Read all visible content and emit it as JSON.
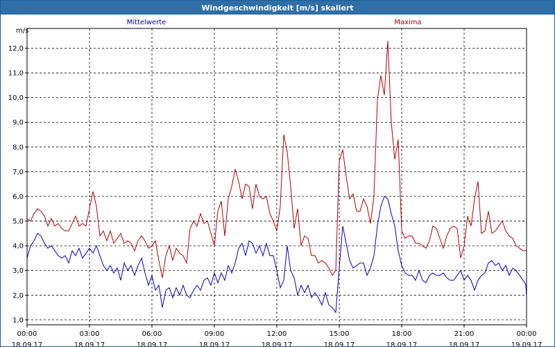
{
  "window": {
    "title": "Windgeschwindigkeit [m/s] skaliert"
  },
  "colors": {
    "mean": "#0000c0",
    "max": "#b00000",
    "grid": "#000000",
    "axis": "#000000",
    "titlebar": "#2f6ea6"
  },
  "chart_data": {
    "type": "line",
    "title": "Windgeschwindigkeit [m/s] skaliert",
    "ylabel": "m/s",
    "xlabel": "",
    "ylim": [
      0.8,
      12.8
    ],
    "xlim": [
      "18.09.17 00:00",
      "19.09.17 00:00"
    ],
    "grid": true,
    "legend_placement": "top",
    "y_ticks": [
      "1,0",
      "2,0",
      "3,0",
      "4,0",
      "5,0",
      "6,0",
      "7,0",
      "8,0",
      "9,0",
      "10,0",
      "11,0",
      "12,0"
    ],
    "x_ticks": [
      {
        "time": "00:00",
        "date": "18.09.17"
      },
      {
        "time": "03:00",
        "date": "18.09.17"
      },
      {
        "time": "06:00",
        "date": "18.09.17"
      },
      {
        "time": "09:00",
        "date": "18.09.17"
      },
      {
        "time": "12:00",
        "date": "18.09.17"
      },
      {
        "time": "15:00",
        "date": "18.09.17"
      },
      {
        "time": "18:00",
        "date": "18.09.17"
      },
      {
        "time": "21:00",
        "date": "18.09.17"
      },
      {
        "time": "00:00",
        "date": "19.09.17"
      }
    ],
    "series": [
      {
        "name": "Mittelwerte",
        "color": "#0000c0",
        "points": [
          [
            "00:00",
            3.5
          ],
          [
            "00:10",
            4.0
          ],
          [
            "00:20",
            4.2
          ],
          [
            "00:30",
            4.5
          ],
          [
            "00:40",
            4.4
          ],
          [
            "00:50",
            4.1
          ],
          [
            "01:00",
            3.9
          ],
          [
            "01:10",
            4.0
          ],
          [
            "01:20",
            3.8
          ],
          [
            "01:30",
            3.6
          ],
          [
            "01:40",
            3.5
          ],
          [
            "01:50",
            3.6
          ],
          [
            "02:00",
            3.3
          ],
          [
            "02:10",
            3.8
          ],
          [
            "02:20",
            3.6
          ],
          [
            "02:30",
            3.9
          ],
          [
            "02:40",
            3.5
          ],
          [
            "02:50",
            3.7
          ],
          [
            "03:00",
            3.9
          ],
          [
            "03:10",
            3.7
          ],
          [
            "03:20",
            4.0
          ],
          [
            "03:30",
            3.6
          ],
          [
            "03:40",
            3.2
          ],
          [
            "03:50",
            3.0
          ],
          [
            "04:00",
            3.2
          ],
          [
            "04:10",
            2.9
          ],
          [
            "04:20",
            3.1
          ],
          [
            "04:30",
            2.6
          ],
          [
            "04:40",
            3.3
          ],
          [
            "04:50",
            3.0
          ],
          [
            "05:00",
            3.2
          ],
          [
            "05:10",
            2.8
          ],
          [
            "05:20",
            3.2
          ],
          [
            "05:30",
            3.5
          ],
          [
            "05:40",
            2.9
          ],
          [
            "05:50",
            2.4
          ],
          [
            "06:00",
            2.8
          ],
          [
            "06:10",
            2.2
          ],
          [
            "06:20",
            2.4
          ],
          [
            "06:30",
            1.5
          ],
          [
            "06:40",
            2.2
          ],
          [
            "06:50",
            2.3
          ],
          [
            "07:00",
            1.9
          ],
          [
            "07:10",
            2.3
          ],
          [
            "07:20",
            2.0
          ],
          [
            "07:30",
            2.4
          ],
          [
            "07:40",
            2.0
          ],
          [
            "07:50",
            1.9
          ],
          [
            "08:00",
            2.2
          ],
          [
            "08:10",
            2.4
          ],
          [
            "08:20",
            2.2
          ],
          [
            "08:30",
            2.6
          ],
          [
            "08:40",
            2.7
          ],
          [
            "08:50",
            2.4
          ],
          [
            "09:00",
            2.9
          ],
          [
            "09:10",
            2.5
          ],
          [
            "09:20",
            2.9
          ],
          [
            "09:30",
            2.6
          ],
          [
            "09:40",
            3.2
          ],
          [
            "09:50",
            2.9
          ],
          [
            "10:00",
            3.3
          ],
          [
            "10:10",
            3.9
          ],
          [
            "10:20",
            4.1
          ],
          [
            "10:30",
            3.6
          ],
          [
            "10:40",
            4.2
          ],
          [
            "10:50",
            4.1
          ],
          [
            "11:00",
            3.7
          ],
          [
            "11:10",
            4.0
          ],
          [
            "11:20",
            3.6
          ],
          [
            "11:30",
            4.1
          ],
          [
            "11:40",
            3.6
          ],
          [
            "11:50",
            3.6
          ],
          [
            "12:00",
            3.0
          ],
          [
            "12:10",
            2.3
          ],
          [
            "12:20",
            2.6
          ],
          [
            "12:30",
            4.0
          ],
          [
            "12:40",
            3.0
          ],
          [
            "12:50",
            2.7
          ],
          [
            "13:00",
            2.0
          ],
          [
            "13:10",
            2.4
          ],
          [
            "13:20",
            2.1
          ],
          [
            "13:30",
            2.4
          ],
          [
            "13:40",
            1.9
          ],
          [
            "13:50",
            2.1
          ],
          [
            "14:00",
            1.9
          ],
          [
            "14:10",
            1.6
          ],
          [
            "14:20",
            2.1
          ],
          [
            "14:30",
            1.6
          ],
          [
            "14:40",
            1.5
          ],
          [
            "14:50",
            1.3
          ],
          [
            "15:00",
            3.1
          ],
          [
            "15:10",
            4.8
          ],
          [
            "15:20",
            4.1
          ],
          [
            "15:30",
            3.4
          ],
          [
            "15:40",
            3.1
          ],
          [
            "15:50",
            3.2
          ],
          [
            "16:00",
            3.3
          ],
          [
            "16:10",
            3.3
          ],
          [
            "16:20",
            2.8
          ],
          [
            "16:30",
            3.1
          ],
          [
            "16:40",
            3.6
          ],
          [
            "16:50",
            4.8
          ],
          [
            "17:00",
            5.6
          ],
          [
            "17:10",
            6.0
          ],
          [
            "17:20",
            5.9
          ],
          [
            "17:30",
            5.3
          ],
          [
            "17:40",
            4.8
          ],
          [
            "17:50",
            3.8
          ],
          [
            "18:00",
            3.2
          ],
          [
            "18:10",
            2.9
          ],
          [
            "18:20",
            2.8
          ],
          [
            "18:30",
            2.8
          ],
          [
            "18:40",
            2.6
          ],
          [
            "18:50",
            3.0
          ],
          [
            "19:00",
            2.6
          ],
          [
            "19:10",
            2.5
          ],
          [
            "19:20",
            2.8
          ],
          [
            "19:30",
            2.9
          ],
          [
            "19:40",
            2.8
          ],
          [
            "19:50",
            2.8
          ],
          [
            "20:00",
            2.9
          ],
          [
            "20:10",
            2.7
          ],
          [
            "20:20",
            2.6
          ],
          [
            "20:30",
            2.6
          ],
          [
            "20:40",
            2.8
          ],
          [
            "20:50",
            3.0
          ],
          [
            "21:00",
            2.6
          ],
          [
            "21:10",
            2.8
          ],
          [
            "21:20",
            2.6
          ],
          [
            "21:30",
            2.2
          ],
          [
            "21:40",
            2.6
          ],
          [
            "21:50",
            2.8
          ],
          [
            "22:00",
            2.9
          ],
          [
            "22:10",
            3.3
          ],
          [
            "22:20",
            3.4
          ],
          [
            "22:30",
            3.2
          ],
          [
            "22:40",
            3.3
          ],
          [
            "22:50",
            3.0
          ],
          [
            "23:00",
            3.2
          ],
          [
            "23:10",
            2.8
          ],
          [
            "23:20",
            3.1
          ],
          [
            "23:30",
            3.0
          ],
          [
            "23:40",
            2.8
          ],
          [
            "23:50",
            2.6
          ],
          [
            "23:55",
            2.5
          ],
          [
            "23:58",
            2.4
          ],
          [
            "24:00",
            1.9
          ]
        ]
      },
      {
        "name": "Maxima",
        "color": "#b00000",
        "points": [
          [
            "00:00",
            5.1
          ],
          [
            "00:10",
            5.0
          ],
          [
            "00:20",
            5.3
          ],
          [
            "00:30",
            5.5
          ],
          [
            "00:40",
            5.4
          ],
          [
            "00:50",
            5.2
          ],
          [
            "01:00",
            4.8
          ],
          [
            "01:10",
            5.1
          ],
          [
            "01:20",
            4.8
          ],
          [
            "01:30",
            4.9
          ],
          [
            "01:40",
            4.7
          ],
          [
            "01:50",
            4.6
          ],
          [
            "02:00",
            4.6
          ],
          [
            "02:10",
            4.9
          ],
          [
            "02:20",
            5.2
          ],
          [
            "02:30",
            4.8
          ],
          [
            "02:40",
            4.9
          ],
          [
            "02:50",
            4.8
          ],
          [
            "03:00",
            5.5
          ],
          [
            "03:10",
            6.2
          ],
          [
            "03:20",
            5.6
          ],
          [
            "03:30",
            4.4
          ],
          [
            "03:40",
            4.6
          ],
          [
            "03:50",
            4.2
          ],
          [
            "04:00",
            4.6
          ],
          [
            "04:10",
            4.1
          ],
          [
            "04:20",
            4.3
          ],
          [
            "04:30",
            4.5
          ],
          [
            "04:40",
            4.1
          ],
          [
            "04:50",
            4.2
          ],
          [
            "05:00",
            4.1
          ],
          [
            "05:10",
            3.8
          ],
          [
            "05:20",
            4.2
          ],
          [
            "05:30",
            4.4
          ],
          [
            "05:40",
            4.2
          ],
          [
            "05:50",
            3.9
          ],
          [
            "06:00",
            4.0
          ],
          [
            "06:10",
            4.2
          ],
          [
            "06:20",
            3.4
          ],
          [
            "06:30",
            2.7
          ],
          [
            "06:40",
            3.6
          ],
          [
            "06:50",
            4.0
          ],
          [
            "07:00",
            3.4
          ],
          [
            "07:10",
            3.9
          ],
          [
            "07:20",
            3.7
          ],
          [
            "07:30",
            3.6
          ],
          [
            "07:40",
            3.3
          ],
          [
            "07:50",
            4.7
          ],
          [
            "08:00",
            5.0
          ],
          [
            "08:10",
            4.8
          ],
          [
            "08:20",
            5.3
          ],
          [
            "08:30",
            4.9
          ],
          [
            "08:40",
            5.0
          ],
          [
            "08:50",
            4.5
          ],
          [
            "09:00",
            4.0
          ],
          [
            "09:10",
            5.4
          ],
          [
            "09:20",
            5.8
          ],
          [
            "09:30",
            4.4
          ],
          [
            "09:40",
            5.9
          ],
          [
            "09:50",
            6.4
          ],
          [
            "10:00",
            7.1
          ],
          [
            "10:10",
            6.6
          ],
          [
            "10:20",
            5.9
          ],
          [
            "10:30",
            6.5
          ],
          [
            "10:40",
            6.4
          ],
          [
            "10:50",
            5.5
          ],
          [
            "11:00",
            6.5
          ],
          [
            "11:10",
            6.0
          ],
          [
            "11:20",
            5.9
          ],
          [
            "11:30",
            6.0
          ],
          [
            "11:40",
            5.3
          ],
          [
            "11:50",
            5.0
          ],
          [
            "12:00",
            4.6
          ],
          [
            "12:10",
            5.6
          ],
          [
            "12:20",
            8.5
          ],
          [
            "12:30",
            7.8
          ],
          [
            "12:40",
            6.4
          ],
          [
            "12:50",
            4.7
          ],
          [
            "13:00",
            5.5
          ],
          [
            "13:10",
            4.0
          ],
          [
            "13:20",
            4.4
          ],
          [
            "13:30",
            4.3
          ],
          [
            "13:40",
            3.6
          ],
          [
            "13:50",
            3.6
          ],
          [
            "14:00",
            3.3
          ],
          [
            "14:10",
            3.4
          ],
          [
            "14:20",
            3.3
          ],
          [
            "14:30",
            3.1
          ],
          [
            "14:40",
            2.8
          ],
          [
            "14:50",
            3.0
          ],
          [
            "15:00",
            7.4
          ],
          [
            "15:10",
            7.9
          ],
          [
            "15:20",
            6.8
          ],
          [
            "15:30",
            5.9
          ],
          [
            "15:40",
            6.1
          ],
          [
            "15:50",
            5.4
          ],
          [
            "16:00",
            5.4
          ],
          [
            "16:10",
            5.9
          ],
          [
            "16:20",
            5.6
          ],
          [
            "16:30",
            4.9
          ],
          [
            "16:40",
            6.0
          ],
          [
            "16:50",
            9.9
          ],
          [
            "17:00",
            10.9
          ],
          [
            "17:10",
            10.1
          ],
          [
            "17:20",
            12.3
          ],
          [
            "17:30",
            9.0
          ],
          [
            "17:40",
            7.5
          ],
          [
            "17:50",
            8.3
          ],
          [
            "18:00",
            4.6
          ],
          [
            "18:10",
            4.3
          ],
          [
            "18:20",
            4.4
          ],
          [
            "18:30",
            4.4
          ],
          [
            "18:40",
            4.1
          ],
          [
            "18:50",
            4.1
          ],
          [
            "19:00",
            4.0
          ],
          [
            "19:10",
            3.9
          ],
          [
            "19:20",
            4.2
          ],
          [
            "19:30",
            4.8
          ],
          [
            "19:40",
            4.7
          ],
          [
            "19:50",
            4.3
          ],
          [
            "20:00",
            3.9
          ],
          [
            "20:10",
            4.4
          ],
          [
            "20:20",
            4.7
          ],
          [
            "20:30",
            4.8
          ],
          [
            "20:40",
            4.7
          ],
          [
            "20:50",
            3.5
          ],
          [
            "21:00",
            4.0
          ],
          [
            "21:10",
            5.2
          ],
          [
            "21:20",
            4.8
          ],
          [
            "21:30",
            5.9
          ],
          [
            "21:40",
            6.6
          ],
          [
            "21:50",
            4.5
          ],
          [
            "22:00",
            4.6
          ],
          [
            "22:10",
            5.4
          ],
          [
            "22:20",
            4.5
          ],
          [
            "22:30",
            4.6
          ],
          [
            "22:40",
            4.8
          ],
          [
            "22:50",
            5.0
          ],
          [
            "23:00",
            4.6
          ],
          [
            "23:10",
            4.4
          ],
          [
            "23:20",
            4.3
          ],
          [
            "23:30",
            4.0
          ],
          [
            "23:40",
            3.9
          ],
          [
            "23:50",
            3.8
          ],
          [
            "24:00",
            3.8
          ]
        ]
      }
    ]
  }
}
